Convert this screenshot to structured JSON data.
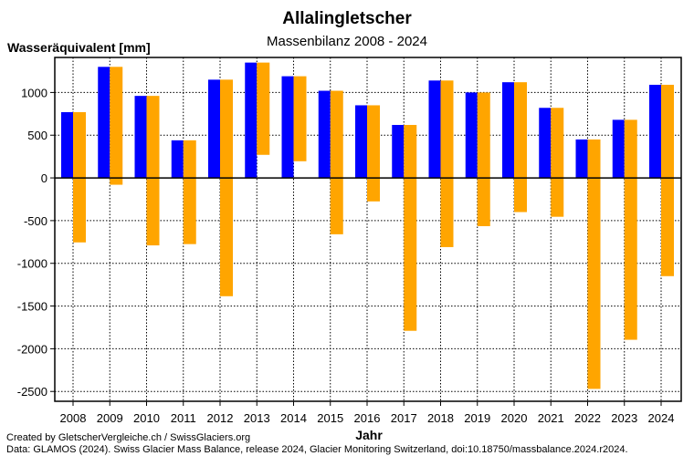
{
  "chart_data": {
    "type": "bar",
    "title": "Allalingletscher",
    "subtitle": "Massenbilanz 2008 - 2024",
    "ylabel": "Wasseräquivalent [mm]",
    "xlabel": "Jahr",
    "ylim": [
      -2615,
      1410
    ],
    "yticks": [
      1000,
      500,
      0,
      -500,
      -1000,
      -1500,
      -2000,
      -2500
    ],
    "grid": true,
    "categories": [
      "2008",
      "2009",
      "2010",
      "2011",
      "2012",
      "2013",
      "2014",
      "2015",
      "2016",
      "2017",
      "2018",
      "2019",
      "2020",
      "2021",
      "2022",
      "2023",
      "2024"
    ],
    "series": [
      {
        "role": "winter balance (bar from 0)",
        "color": "#0000ff",
        "values": [
          770,
          1300,
          960,
          440,
          1150,
          1350,
          1190,
          1020,
          850,
          620,
          1140,
          1000,
          1120,
          820,
          450,
          680,
          1090
        ]
      },
      {
        "role": "annual balance (bar from winter value down to annual value)",
        "color": "#ffa500",
        "values": [
          -755,
          -80,
          -790,
          -775,
          -1385,
          270,
          195,
          -660,
          -275,
          -1790,
          -810,
          -565,
          -400,
          -455,
          -2470,
          -1895,
          -1150
        ]
      }
    ]
  },
  "footer": {
    "credit": "Created by GletscherVergleiche.ch / SwissGlaciers.org",
    "source": "Data: GLAMOS (2024). Swiss Glacier Mass Balance, release 2024, Glacier Monitoring Switzerland, doi:10.18750/massbalance.2024.r2024."
  }
}
